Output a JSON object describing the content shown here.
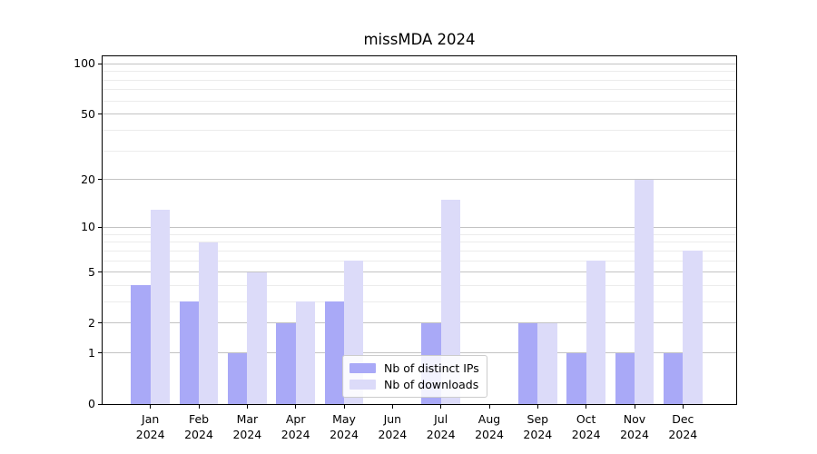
{
  "chart_data": {
    "type": "bar",
    "title": "missMDA 2024",
    "categories": [
      "Jan 2024",
      "Feb 2024",
      "Mar 2024",
      "Apr 2024",
      "May 2024",
      "Jun 2024",
      "Jul 2024",
      "Aug 2024",
      "Sep 2024",
      "Oct 2024",
      "Nov 2024",
      "Dec 2024"
    ],
    "series": [
      {
        "name": "Nb of distinct IPs",
        "color": "#a9a9f7",
        "values": [
          4,
          3,
          1,
          2,
          3,
          0,
          2,
          0,
          2,
          1,
          1,
          1
        ]
      },
      {
        "name": "Nb of downloads",
        "color": "#dcdbf9",
        "values": [
          13,
          8,
          5,
          3,
          6,
          0,
          15,
          0,
          2,
          6,
          20,
          7
        ]
      }
    ],
    "xlabel": "",
    "ylabel": "",
    "y_axis": {
      "scale": "log1p",
      "major_ticks": [
        0,
        1,
        2,
        5,
        10,
        20,
        50,
        100
      ],
      "minor_ticks": [
        3,
        4,
        6,
        7,
        8,
        9,
        30,
        40,
        60,
        70,
        80,
        90
      ],
      "ylim": [
        0,
        111
      ]
    },
    "grid": "horizontal",
    "legend": {
      "position": "lower center",
      "entries": [
        "Nb of distinct IPs",
        "Nb of downloads"
      ]
    },
    "colors": {
      "major_grid": "#c3c3c3",
      "minor_grid": "#ececec",
      "spine": "#000000",
      "text": "#000000"
    }
  }
}
